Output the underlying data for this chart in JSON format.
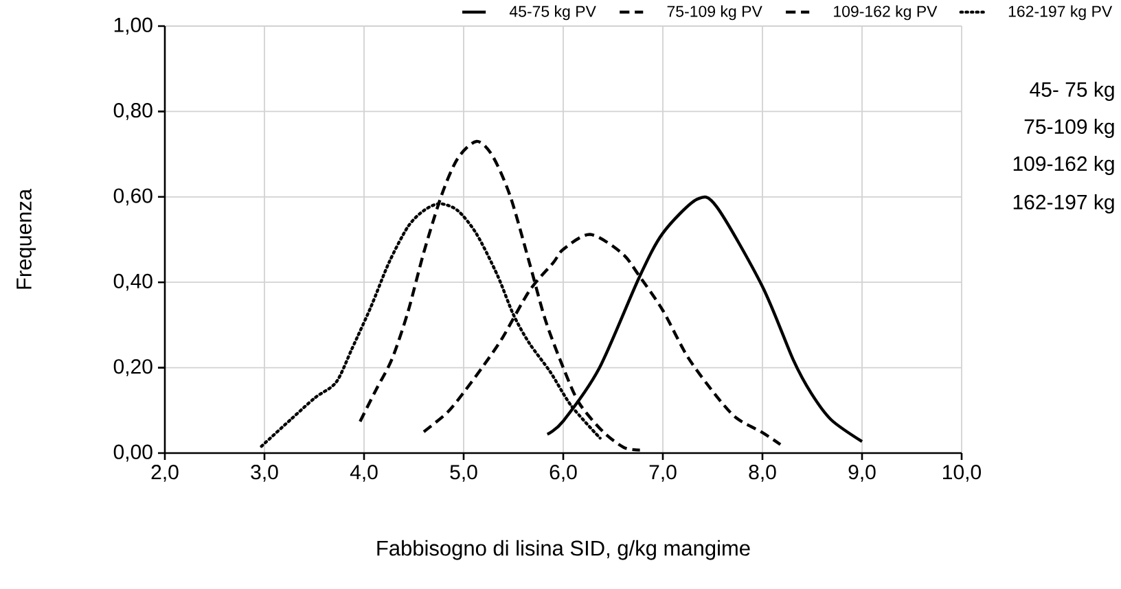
{
  "chart_data": {
    "type": "line",
    "xlabel": "Fabbisogno di lisina SID, g/kg mangime",
    "ylabel": "Frequenza",
    "xlim": [
      2.0,
      10.0
    ],
    "xticks": [
      {
        "value": 2,
        "label": "2,0"
      },
      {
        "value": 3,
        "label": "3,0"
      },
      {
        "value": 4,
        "label": "4,0"
      },
      {
        "value": 5,
        "label": "5,0"
      },
      {
        "value": 6,
        "label": "6,0"
      },
      {
        "value": 7,
        "label": "7,0"
      },
      {
        "value": 8,
        "label": "8,0"
      },
      {
        "value": 9,
        "label": "9,0"
      },
      {
        "value": 10,
        "label": "10,0"
      }
    ],
    "ylim": [
      0,
      1
    ],
    "yticks": [
      {
        "value": 0,
        "label": "0,00"
      },
      {
        "value": 0.2,
        "label": "0,20"
      },
      {
        "value": 0.4,
        "label": "0,40"
      },
      {
        "value": 0.6,
        "label": "0,60"
      },
      {
        "value": 0.8,
        "label": "0,80"
      },
      {
        "value": 1,
        "label": "1,00"
      }
    ],
    "grid": true,
    "legend": "top",
    "marker": "none",
    "series": [
      {
        "name": "45-75 kg PV",
        "color": "#000000",
        "line_style": "solid",
        "x": [
          5.84,
          6.0,
          6.36,
          6.76,
          7.0,
          7.34,
          7.54,
          8.0,
          8.31,
          8.49,
          8.69,
          9.0
        ],
        "values": [
          0.044,
          0.075,
          0.198,
          0.41,
          0.515,
          0.594,
          0.577,
          0.39,
          0.218,
          0.14,
          0.078,
          0.027
        ]
      },
      {
        "name": "75-109 kg PV",
        "color": "#000000",
        "line_style": "dashed",
        "x": [
          4.6,
          4.84,
          5.02,
          5.2,
          5.39,
          5.66,
          5.9,
          6.0,
          6.27,
          6.59,
          6.76,
          7.0,
          7.25,
          7.54,
          7.74,
          8.0,
          8.18
        ],
        "values": [
          0.05,
          0.096,
          0.148,
          0.205,
          0.27,
          0.38,
          0.446,
          0.477,
          0.512,
          0.468,
          0.416,
          0.334,
          0.225,
          0.133,
          0.082,
          0.048,
          0.02
        ]
      },
      {
        "name": "109-162 kg PV",
        "color": "#000000",
        "line_style": "dashed",
        "x": [
          3.96,
          4.12,
          4.28,
          4.44,
          4.6,
          4.78,
          4.94,
          5.13,
          5.29,
          5.47,
          5.66,
          5.82,
          6.0,
          6.16,
          6.4,
          6.61,
          6.77
        ],
        "values": [
          0.074,
          0.148,
          0.22,
          0.33,
          0.47,
          0.605,
          0.69,
          0.73,
          0.696,
          0.6,
          0.446,
          0.312,
          0.2,
          0.117,
          0.05,
          0.013,
          0.007
        ]
      },
      {
        "name": "162-197 kg PV",
        "color": "#000000",
        "line_style": "dotted",
        "x": [
          2.97,
          3.27,
          3.51,
          3.72,
          3.88,
          4.07,
          4.25,
          4.44,
          4.6,
          4.76,
          4.94,
          5.13,
          5.34,
          5.5,
          5.66,
          5.87,
          6.08,
          6.37
        ],
        "values": [
          0.016,
          0.08,
          0.13,
          0.166,
          0.245,
          0.343,
          0.446,
          0.53,
          0.568,
          0.584,
          0.568,
          0.513,
          0.416,
          0.324,
          0.257,
          0.19,
          0.111,
          0.035
        ]
      }
    ],
    "annotations": [
      "45-  75 kg",
      "75-109 kg",
      "109-162 kg",
      "162-197 kg"
    ]
  }
}
